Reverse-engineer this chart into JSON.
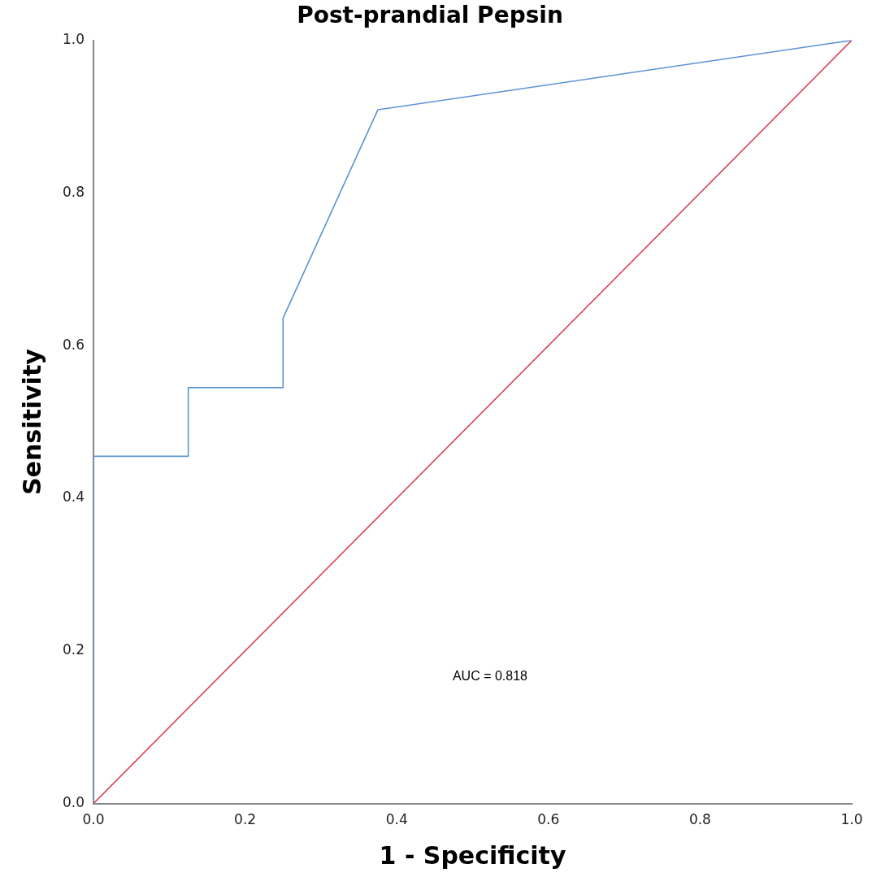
{
  "chart_data": {
    "type": "line",
    "title": "Post-prandial Pepsin",
    "xlabel": "1 - Specificity",
    "ylabel": "Sensitivity",
    "annotations": [
      "AUC = 0.818"
    ],
    "series": [
      {
        "color": "#5b93d6",
        "x": [
          0,
          0,
          0.125,
          0.125,
          0.25,
          0.25,
          0.375,
          1
        ],
        "values": [
          0,
          0.455,
          0.455,
          0.545,
          0.545,
          0.636,
          0.909,
          1
        ]
      },
      {
        "color": "#d9405a",
        "x": [
          0,
          1
        ],
        "values": [
          0,
          1
        ]
      }
    ],
    "xlim": [
      0,
      1
    ],
    "ylim": [
      0,
      1
    ],
    "xticks": [
      {
        "value": 0,
        "label": "0.0"
      },
      0.2,
      0.4,
      0.6,
      0.8,
      {
        "value": 1,
        "label": "1.0"
      }
    ],
    "yticks": [
      {
        "value": 0,
        "label": "0.0"
      },
      0.2,
      0.4,
      0.6,
      0.8,
      {
        "value": 1,
        "label": "1.0"
      }
    ],
    "grid": false,
    "legend": false,
    "marker": "none",
    "line_style": "solid"
  }
}
